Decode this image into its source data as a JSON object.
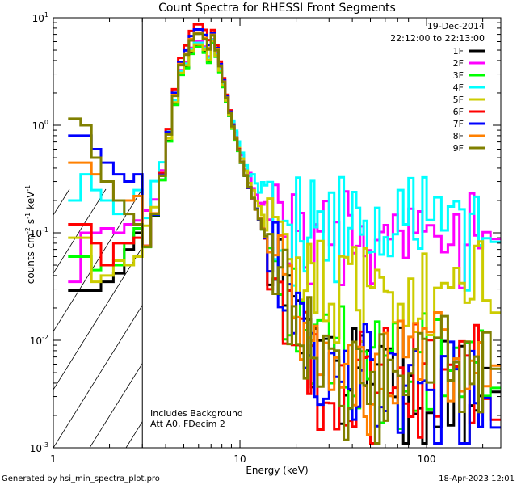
{
  "chart_data": {
    "type": "line",
    "title": "Count Spectra for RHESSI Front Segments",
    "xlabel": "Energy (keV)",
    "ylabel_main": "counts cm",
    "ylabel_unit1": "s",
    "ylabel_unit2": "keV",
    "ylabel_exp": "-2",
    "ylabel_exp2": "-1",
    "ylabel_exp3": "-1",
    "xscale": "log",
    "yscale": "log",
    "xlim": [
      1,
      250
    ],
    "ylim": [
      0.001,
      10
    ],
    "x_ticks": [
      {
        "value": 1,
        "label": "1"
      },
      {
        "value": 10,
        "label": "10"
      },
      {
        "value": 100,
        "label": "100"
      }
    ],
    "y_ticks": [
      {
        "value": 0.001,
        "base": "10",
        "exp": "-3"
      },
      {
        "value": 0.01,
        "base": "10",
        "exp": "-2"
      },
      {
        "value": 0.1,
        "base": "10",
        "exp": "-1"
      },
      {
        "value": 1,
        "base": "10",
        "exp": "0"
      },
      {
        "value": 10,
        "base": "10",
        "exp": "1"
      }
    ],
    "hatched_region_keV": [
      1,
      3
    ],
    "date": "19-Dec-2014",
    "time_range": "22:12:00 to 22:13:00",
    "notes": [
      "Includes Background",
      "Att A0, FDecim 2"
    ],
    "footer_left": "Generated by hsi_min_spectra_plot.pro",
    "footer_right": "18-Apr-2023 12:01",
    "legend_position": "top-right",
    "energy_bins_keV": [
      3.0,
      3.33,
      3.67,
      4.0,
      4.33,
      4.67,
      5.0,
      5.33,
      5.67,
      6.0,
      6.33,
      6.67,
      7.0,
      7.33,
      7.67,
      8.0,
      8.33,
      8.67,
      9.0,
      9.33,
      9.67,
      10.0,
      10.5,
      11.0,
      11.5,
      12.0,
      12.5,
      13.0,
      13.5,
      14.0,
      15.0,
      16.0,
      17.0,
      18.0,
      19.0,
      20.0,
      21.0,
      22.0,
      23.0,
      24.0,
      25.0,
      26.0,
      28.0,
      30.0,
      32.0,
      34.0,
      36.0,
      38.0,
      40.0,
      42.0,
      44.0,
      46.0,
      48.0,
      50.0,
      53.0,
      56.0,
      59.0,
      62.0,
      66.0,
      70.0,
      75.0,
      80.0,
      85.0,
      90.0,
      95.0,
      100.0,
      110.0,
      120.0,
      130.0,
      140.0,
      150.0,
      160.0,
      170.0,
      180.0,
      190.0,
      200.0,
      220.0,
      250.0
    ],
    "series": [
      {
        "name": "1F",
        "color": "#000000",
        "low_x": [
          1.2,
          1.4,
          1.6,
          1.8,
          2.1,
          2.4,
          2.7
        ],
        "low_y": [
          0.029,
          0.029,
          0.029,
          0.035,
          0.042,
          0.07,
          0.1
        ],
        "peak": 5.5,
        "bg": 0.003,
        "noise": 0.55,
        "seed": 1
      },
      {
        "name": "2F",
        "color": "#ff00ff",
        "low_x": [
          1.2,
          1.4,
          1.6,
          1.8,
          2.1,
          2.4,
          2.7
        ],
        "low_y": [
          0.035,
          0.1,
          0.1,
          0.11,
          0.1,
          0.12,
          0.13
        ],
        "peak": 6.0,
        "bg": 0.08,
        "noise": 0.35,
        "seed": 2
      },
      {
        "name": "3F",
        "color": "#00ff00",
        "low_x": [
          1.2,
          1.4,
          1.6,
          1.8,
          2.1,
          2.4,
          2.7
        ],
        "low_y": [
          0.06,
          0.06,
          0.045,
          0.05,
          0.05,
          0.08,
          0.11
        ],
        "peak": 5.4,
        "bg": 0.004,
        "noise": 0.55,
        "seed": 3
      },
      {
        "name": "4F",
        "color": "#00ffff",
        "low_x": [
          1.2,
          1.4,
          1.6,
          1.8,
          2.1,
          2.4,
          2.7
        ],
        "low_y": [
          0.2,
          0.35,
          0.25,
          0.2,
          0.15,
          0.2,
          0.25
        ],
        "peak": 5.8,
        "bg": 0.1,
        "noise": 0.5,
        "seed": 4
      },
      {
        "name": "5F",
        "color": "#cccc00",
        "low_x": [
          1.2,
          1.4,
          1.6,
          1.8,
          2.1,
          2.4,
          2.7
        ],
        "low_y": [
          0.09,
          0.09,
          0.035,
          0.04,
          0.055,
          0.05,
          0.06
        ],
        "peak": 5.7,
        "bg": 0.025,
        "noise": 0.5,
        "seed": 5
      },
      {
        "name": "6F",
        "color": "#ff0000",
        "low_x": [
          1.2,
          1.4,
          1.6,
          1.8,
          2.1,
          2.4,
          2.7
        ],
        "low_y": [
          0.12,
          0.12,
          0.08,
          0.05,
          0.08,
          0.08,
          0.09
        ],
        "peak": 8.8,
        "bg": 0.003,
        "noise": 0.55,
        "seed": 6
      },
      {
        "name": "7F",
        "color": "#0000ff",
        "low_x": [
          1.2,
          1.4,
          1.6,
          1.8,
          2.1,
          2.4,
          2.7
        ],
        "low_y": [
          0.8,
          0.8,
          0.6,
          0.45,
          0.35,
          0.3,
          0.35
        ],
        "peak": 7.9,
        "bg": 0.003,
        "noise": 0.55,
        "seed": 7
      },
      {
        "name": "8F",
        "color": "#ff8000",
        "low_x": [
          1.2,
          1.4,
          1.6,
          1.8,
          2.1,
          2.4,
          2.7
        ],
        "low_y": [
          0.45,
          0.45,
          0.35,
          0.3,
          0.2,
          0.2,
          0.22
        ],
        "peak": 7.4,
        "bg": 0.004,
        "noise": 0.55,
        "seed": 8
      },
      {
        "name": "9F",
        "color": "#808000",
        "low_x": [
          1.2,
          1.4,
          1.6,
          1.8,
          2.1,
          2.4,
          2.7
        ],
        "low_y": [
          1.15,
          1.0,
          0.5,
          0.3,
          0.2,
          0.15,
          0.12
        ],
        "peak": 7.2,
        "bg": 0.004,
        "noise": 0.55,
        "seed": 9
      }
    ]
  }
}
